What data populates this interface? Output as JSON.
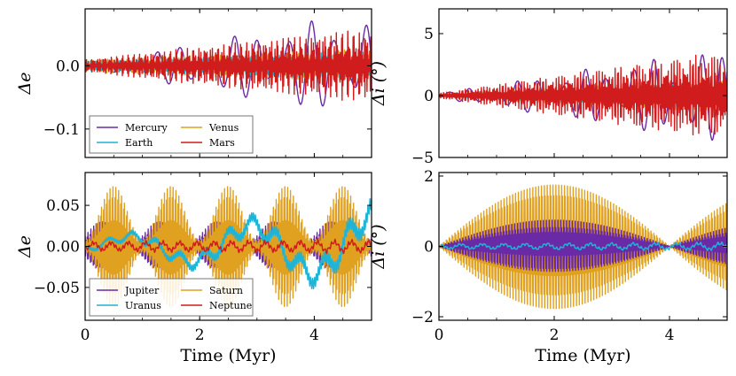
{
  "chart_data": [
    {
      "id": "top-left",
      "type": "line",
      "ylabel": "Δe",
      "xlabel": "",
      "xlim": [
        0,
        5
      ],
      "ylim": [
        -0.145,
        0.09
      ],
      "xticks": [
        0,
        2,
        4
      ],
      "yticks": [
        {
          "value": 0.0,
          "label": "0.0"
        },
        {
          "value": -0.1,
          "label": "−0.1"
        }
      ],
      "show_xtick_labels": false,
      "legend": {
        "position": "lower-left",
        "columns": 2
      },
      "series": [
        {
          "name": "Mercury",
          "color": "#6a2aa6",
          "freq": 2.2,
          "amp": [
            0.004,
            0.08
          ],
          "seed": 1
        },
        {
          "name": "Venus",
          "color": "#e0a020",
          "freq": 30,
          "amp": [
            0.01,
            0.025
          ],
          "seed": 2
        },
        {
          "name": "Earth",
          "color": "#1fb4d6",
          "freq": 33,
          "amp": [
            0.008,
            0.022
          ],
          "seed": 3
        },
        {
          "name": "Mars",
          "color": "#d01c1c",
          "freq": 55,
          "amp": [
            0.01,
            0.055
          ],
          "seed": 4
        }
      ]
    },
    {
      "id": "top-right",
      "type": "line",
      "ylabel": "Δi (°)",
      "xlabel": "",
      "xlim": [
        0,
        5
      ],
      "ylim": [
        -5,
        7
      ],
      "xticks": [
        0,
        2,
        4
      ],
      "yticks": [
        {
          "value": 5,
          "label": "5"
        },
        {
          "value": 0,
          "label": "0"
        },
        {
          "value": -5,
          "label": "−5"
        }
      ],
      "show_xtick_labels": false,
      "series": [
        {
          "name": "Mercury",
          "color": "#6a2aa6",
          "freq": 2.5,
          "amp": [
            0.2,
            3.6
          ],
          "seed": 5
        },
        {
          "name": "Venus",
          "color": "#e0a020",
          "freq": 30,
          "amp": [
            0.1,
            1.3
          ],
          "seed": 6
        },
        {
          "name": "Earth",
          "color": "#1fb4d6",
          "freq": 35,
          "amp": [
            0.1,
            1.0
          ],
          "seed": 7
        },
        {
          "name": "Mars",
          "color": "#d01c1c",
          "freq": 50,
          "amp": [
            0.2,
            3.3
          ],
          "seed": 8
        }
      ]
    },
    {
      "id": "bottom-left",
      "type": "line",
      "ylabel": "Δe",
      "xlabel": "Time (Myr)",
      "xlim": [
        0,
        5
      ],
      "ylim": [
        -0.09,
        0.09
      ],
      "xticks": [
        0,
        2,
        4
      ],
      "xtick_labels": [
        "0",
        "2",
        "4"
      ],
      "yticks": [
        {
          "value": 0.05,
          "label": "0.05"
        },
        {
          "value": 0.0,
          "label": "0.00"
        },
        {
          "value": -0.05,
          "label": "−0.05"
        }
      ],
      "show_xtick_labels": true,
      "legend": {
        "position": "lower-left",
        "columns": 2
      },
      "series": [
        {
          "name": "Jupiter",
          "color": "#6a2aa6",
          "freq": 60,
          "amp": [
            0.03,
            0.03
          ],
          "seed": 9,
          "kind": "beat"
        },
        {
          "name": "Saturn",
          "color": "#e0a020",
          "freq": 60,
          "amp": [
            0.075,
            0.075
          ],
          "seed": 10,
          "kind": "beat"
        },
        {
          "name": "Uranus",
          "color": "#1fb4d6",
          "freq": 1.4,
          "amp": [
            0.01,
            0.055
          ],
          "seed": 11,
          "kind": "slow"
        },
        {
          "name": "Neptune",
          "color": "#d01c1c",
          "freq": 10,
          "amp": [
            0.006,
            0.008
          ],
          "seed": 12,
          "kind": "slow"
        }
      ]
    },
    {
      "id": "bottom-right",
      "type": "line",
      "ylabel": "Δi (°)",
      "xlabel": "Time (Myr)",
      "xlim": [
        0,
        5
      ],
      "ylim": [
        -2.1,
        2.1
      ],
      "xticks": [
        0,
        2,
        4
      ],
      "xtick_labels": [
        "0",
        "2",
        "4"
      ],
      "yticks": [
        {
          "value": 2,
          "label": "2"
        },
        {
          "value": 0,
          "label": "0"
        },
        {
          "value": -2,
          "label": "−2"
        }
      ],
      "show_xtick_labels": true,
      "series": [
        {
          "name": "Saturn",
          "color": "#e0a020",
          "freq": 60,
          "amp": [
            1.8,
            1.8
          ],
          "seed": 13,
          "kind": "envelope"
        },
        {
          "name": "Jupiter",
          "color": "#6a2aa6",
          "freq": 60,
          "amp": [
            0.75,
            0.75
          ],
          "seed": 14,
          "kind": "envelope"
        },
        {
          "name": "Uranus",
          "color": "#1fb4d6",
          "freq": 8,
          "amp": [
            0.08,
            0.12
          ],
          "seed": 15,
          "kind": "slow"
        }
      ]
    }
  ]
}
